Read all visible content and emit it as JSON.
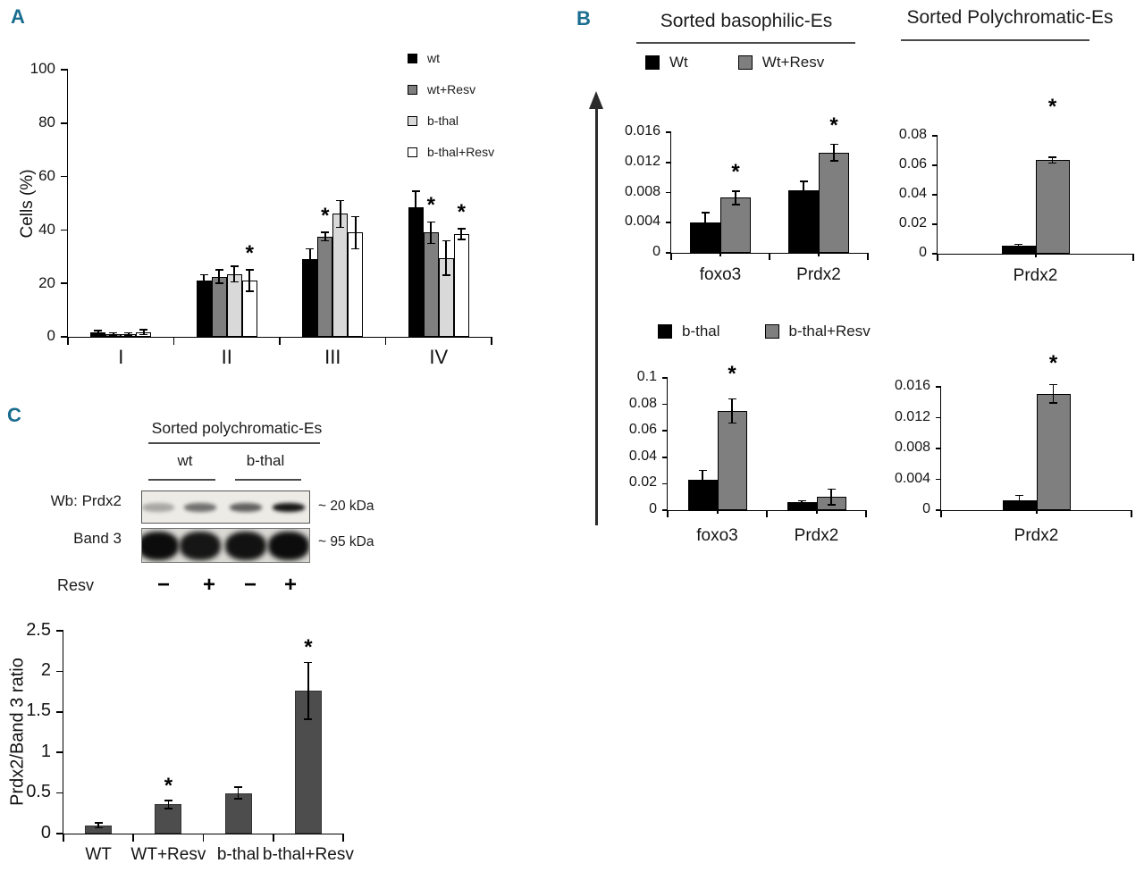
{
  "accent_color": "#1a6d90",
  "axis_color": "#000000",
  "panelA": {
    "label": "A",
    "ylabel": "Cells (%)",
    "legend": [
      {
        "label": "wt",
        "fill": "#000000"
      },
      {
        "label": "wt+Resv",
        "fill": "#7f7f7f"
      },
      {
        "label": "b-thal",
        "fill": "#d9d9d9"
      },
      {
        "label": "b-thal+Resv",
        "fill": "#ffffff"
      }
    ]
  },
  "panelB": {
    "label": "B",
    "title_left": "Sorted basophilic-Es",
    "title_right": "Sorted Polychromatic-Es",
    "legend_top": [
      {
        "label": "Wt",
        "fill": "#000000"
      },
      {
        "label": "Wt+Resv",
        "fill": "#7f7f7f"
      }
    ],
    "legend_bottom": [
      {
        "label": "b-thal",
        "fill": "#000000"
      },
      {
        "label": "b-thal+Resv",
        "fill": "#7f7f7f"
      }
    ]
  },
  "panelC": {
    "label": "C",
    "blot": {
      "title": "Sorted polychromatic-Es",
      "groups": [
        "wt",
        "b-thal"
      ],
      "rows": [
        {
          "label": "Wb: Prdx2",
          "size": "~ 20 kDa",
          "bands": [
            0.3,
            0.55,
            0.62,
            0.95
          ]
        },
        {
          "label": "Band 3",
          "size": "~ 95 kDa",
          "bands": [
            1,
            0.95,
            0.97,
            1
          ]
        }
      ],
      "treatment_label": "Resv",
      "treatment_signs": [
        "−",
        "+",
        "−",
        "+"
      ]
    }
  },
  "chart_data": [
    {
      "id": "A-cells-percent",
      "type": "bar",
      "title": "",
      "xlabel": "",
      "ylabel": "Cells (%)",
      "categories": [
        "I",
        "II",
        "III",
        "IV"
      ],
      "yticks": [
        "0",
        "20",
        "40",
        "60",
        "80",
        "100"
      ],
      "ylim": [
        0,
        100
      ],
      "grid": false,
      "legend_position": "top-right",
      "series": [
        {
          "name": "wt",
          "color": "#000000",
          "values": [
            1.8,
            21,
            29,
            48.5
          ],
          "errors": [
            0.5,
            2.3,
            3.9,
            6
          ],
          "sig": [
            false,
            false,
            false,
            false
          ]
        },
        {
          "name": "wt+Resv",
          "color": "#7f7f7f",
          "values": [
            1.1,
            22.5,
            37.5,
            39
          ],
          "errors": [
            0.4,
            2.5,
            1.6,
            4
          ],
          "sig": [
            false,
            false,
            true,
            true
          ]
        },
        {
          "name": "b-thal",
          "color": "#d9d9d9",
          "values": [
            1.1,
            23.5,
            46,
            29.5
          ],
          "errors": [
            0.4,
            3,
            5,
            6.5
          ],
          "sig": [
            false,
            false,
            false,
            false
          ]
        },
        {
          "name": "b-thal+Resv",
          "color": "#ffffff",
          "values": [
            1.8,
            21,
            39,
            38.5
          ],
          "errors": [
            0.9,
            4,
            6,
            2
          ],
          "sig": [
            false,
            true,
            false,
            true
          ]
        }
      ]
    },
    {
      "id": "B-basophilic",
      "type": "bar",
      "title": "Sorted basophilic-Es",
      "xlabel": "",
      "ylabel": "",
      "categories": [
        "foxo3",
        "Prdx2"
      ],
      "yticks": [
        "0",
        "0.004",
        "0.008",
        "0.012",
        "0.016"
      ],
      "ylim": [
        0,
        0.016
      ],
      "grid": false,
      "legend_position": "top",
      "series": [
        {
          "name": "Wt",
          "color": "#000000",
          "values": [
            0.004,
            0.0083
          ],
          "errors": [
            0.0013,
            0.0012
          ],
          "sig": [
            false,
            false
          ]
        },
        {
          "name": "Wt+Resv",
          "color": "#7f7f7f",
          "values": [
            0.0073,
            0.0133
          ],
          "errors": [
            0.0009,
            0.0011
          ],
          "sig": [
            true,
            true
          ]
        }
      ]
    },
    {
      "id": "B-polychromatic-wt",
      "type": "bar",
      "title": "Sorted Polychromatic-Es",
      "xlabel": "",
      "ylabel": "",
      "categories": [
        "Prdx2"
      ],
      "yticks": [
        "0",
        "0.02",
        "0.04",
        "0.06",
        "0.08"
      ],
      "ylim": [
        0,
        0.08
      ],
      "grid": false,
      "legend_position": "top",
      "series": [
        {
          "name": "Wt",
          "color": "#000000",
          "values": [
            0.0055
          ],
          "errors": [
            0.0008
          ],
          "sig": [
            false
          ]
        },
        {
          "name": "Wt+Resv",
          "color": "#7f7f7f",
          "values": [
            0.0635
          ],
          "errors": [
            0.002
          ],
          "sig": [
            true
          ]
        }
      ]
    },
    {
      "id": "B-bthal",
      "type": "bar",
      "title": "",
      "xlabel": "",
      "ylabel": "",
      "categories": [
        "foxo3",
        "Prdx2"
      ],
      "yticks": [
        "0",
        "0.02",
        "0.04",
        "0.06",
        "0.08",
        "0.1"
      ],
      "ylim": [
        0,
        0.1
      ],
      "grid": false,
      "legend_position": "top",
      "series": [
        {
          "name": "b-thal",
          "color": "#000000",
          "values": [
            0.023,
            0.006
          ],
          "errors": [
            0.007,
            0.001
          ],
          "sig": [
            false,
            false
          ]
        },
        {
          "name": "b-thal+Resv",
          "color": "#7f7f7f",
          "values": [
            0.075,
            0.01
          ],
          "errors": [
            0.009,
            0.006
          ],
          "sig": [
            true,
            false
          ]
        }
      ]
    },
    {
      "id": "B-polychromatic-bthal",
      "type": "bar",
      "title": "",
      "xlabel": "",
      "ylabel": "",
      "categories": [
        "Prdx2"
      ],
      "yticks": [
        "0",
        "0.004",
        "0.008",
        "0.012",
        "0.016"
      ],
      "ylim": [
        0,
        0.016
      ],
      "grid": false,
      "legend_position": "top",
      "series": [
        {
          "name": "b-thal",
          "color": "#000000",
          "values": [
            0.0013
          ],
          "errors": [
            0.0006
          ],
          "sig": [
            false
          ]
        },
        {
          "name": "b-thal+Resv",
          "color": "#7f7f7f",
          "values": [
            0.0151
          ],
          "errors": [
            0.0012
          ],
          "sig": [
            true
          ]
        }
      ]
    },
    {
      "id": "C-prdx2-band3-ratio",
      "type": "bar",
      "title": "",
      "xlabel": "",
      "ylabel": "Prdx2/Band 3 ratio",
      "categories": [
        "WT",
        "WT+Resv",
        "b-thal",
        "b-thal+Resv"
      ],
      "yticks": [
        "0",
        "0.5",
        "1",
        "1.5",
        "2",
        "2.5"
      ],
      "ylim": [
        0,
        2.5
      ],
      "grid": false,
      "legend_position": "none",
      "series": [
        {
          "name": "Prdx2/Band 3 ratio",
          "color": "#4d4d4d",
          "border": "#333333",
          "values": [
            0.1,
            0.36,
            0.5,
            1.76
          ],
          "errors": [
            0.03,
            0.05,
            0.07,
            0.35
          ],
          "sig": [
            false,
            true,
            false,
            true
          ]
        }
      ]
    }
  ]
}
